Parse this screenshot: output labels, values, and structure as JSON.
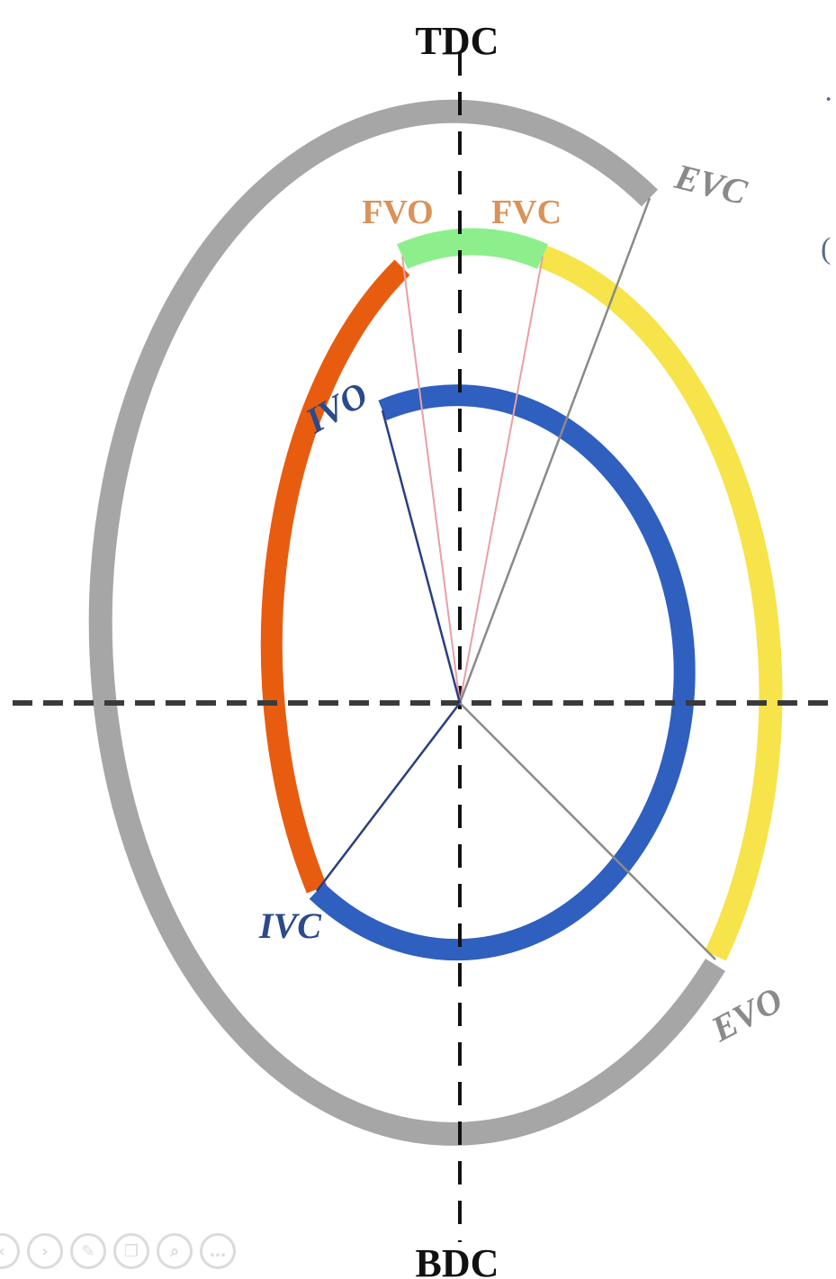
{
  "labels": {
    "tdc": "TDC",
    "bdc": "BDC",
    "evc": "EVC",
    "evo": "EVO",
    "fvo": "FVO",
    "fvc": "FVC",
    "ivo": "IVO",
    "ivc": "IVC"
  },
  "colors": {
    "exhaust_arc": "#a6a6a6",
    "fuel_green_arc": "#8cef8c",
    "yellow_arc": "#f7e34a",
    "orange_arc": "#e85c10",
    "intake_arc": "#2f5fbf",
    "axis": "#3a3a3a",
    "tdc_bdc_text": "#111111",
    "evc_evo_text": "#8a8a8a",
    "fvo_fvc_text": "#d9925a",
    "ivo_ivc_text": "#2a4a8a",
    "fuel_ray": "#e6a0a8",
    "ivo_ray": "#2a3f80",
    "evc_ray": "#8a8a8a",
    "evo_ray": "#8a8a8a"
  },
  "toolbar": {
    "icons": [
      "nav-prev-icon",
      "nav-next-icon",
      "pen-icon",
      "copy-icon",
      "zoom-icon",
      "more-icon"
    ]
  }
}
